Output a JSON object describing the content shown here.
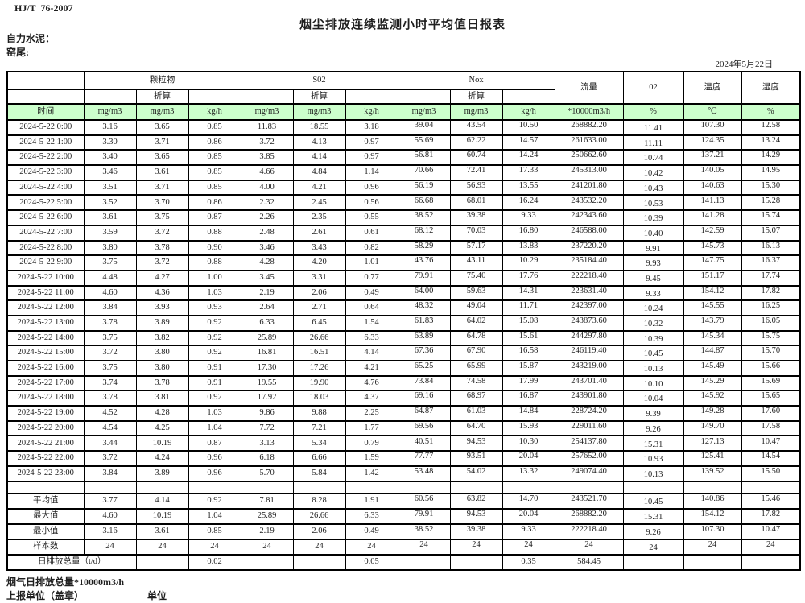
{
  "page": {
    "standard_code": "HJ/T  76-2007",
    "title": "烟尘排放连续监测小时平均值日报表",
    "company": "自力水泥：",
    "kiln": "窑尾:",
    "date": "2024年5月22日"
  },
  "colors": {
    "units_row_green": "#ccffcc",
    "border": "#000000"
  },
  "table": {
    "time_label": "时间",
    "groups": [
      {
        "label": "颗粒物",
        "sub": "折算",
        "units": [
          "mg/m3",
          "mg/m3",
          "kg/h"
        ]
      },
      {
        "label": "S02",
        "sub": "折算",
        "units": [
          "mg/m3",
          "mg/m3",
          "kg/h"
        ]
      },
      {
        "label": "Nox",
        "sub": "折算",
        "units": [
          "mg/m3",
          "mg/m3",
          "kg/h"
        ]
      }
    ],
    "singles": [
      {
        "label": "流量",
        "unit": "*10000m3/h"
      },
      {
        "label": "02",
        "unit": "%"
      },
      {
        "label": "温度",
        "unit": "℃"
      },
      {
        "label": "湿度",
        "unit": "%"
      }
    ],
    "rows": [
      {
        "time": "2024-5-22 0:00",
        "values": [
          "3.16",
          "3.65",
          "0.85",
          "11.83",
          "18.55",
          "3.18",
          "39.04",
          "43.54",
          "10.50",
          "268882.20",
          "11.41",
          "107.30",
          "12.58"
        ]
      },
      {
        "time": "2024-5-22 1:00",
        "values": [
          "3.30",
          "3.71",
          "0.86",
          "3.72",
          "4.13",
          "0.97",
          "55.69",
          "62.22",
          "14.57",
          "261633.00",
          "11.11",
          "124.35",
          "13.24"
        ]
      },
      {
        "time": "2024-5-22 2:00",
        "values": [
          "3.40",
          "3.65",
          "0.85",
          "3.85",
          "4.14",
          "0.97",
          "56.81",
          "60.74",
          "14.24",
          "250662.60",
          "10.74",
          "137.21",
          "14.29"
        ]
      },
      {
        "time": "2024-5-22 3:00",
        "values": [
          "3.46",
          "3.61",
          "0.85",
          "4.66",
          "4.84",
          "1.14",
          "70.66",
          "72.41",
          "17.33",
          "245313.00",
          "10.42",
          "140.05",
          "14.95"
        ]
      },
      {
        "time": "2024-5-22 4:00",
        "values": [
          "3.51",
          "3.71",
          "0.85",
          "4.00",
          "4.21",
          "0.96",
          "56.19",
          "56.93",
          "13.55",
          "241201.80",
          "10.43",
          "140.63",
          "15.30"
        ]
      },
      {
        "time": "2024-5-22 5:00",
        "values": [
          "3.52",
          "3.70",
          "0.86",
          "2.32",
          "2.45",
          "0.56",
          "66.68",
          "68.01",
          "16.24",
          "243532.20",
          "10.53",
          "141.13",
          "15.28"
        ]
      },
      {
        "time": "2024-5-22 6:00",
        "values": [
          "3.61",
          "3.75",
          "0.87",
          "2.26",
          "2.35",
          "0.55",
          "38.52",
          "39.38",
          "9.33",
          "242343.60",
          "10.39",
          "141.28",
          "15.74"
        ]
      },
      {
        "time": "2024-5-22 7:00",
        "values": [
          "3.59",
          "3.72",
          "0.88",
          "2.48",
          "2.61",
          "0.61",
          "68.12",
          "70.03",
          "16.80",
          "246588.00",
          "10.40",
          "142.59",
          "15.07"
        ]
      },
      {
        "time": "2024-5-22 8:00",
        "values": [
          "3.80",
          "3.78",
          "0.90",
          "3.46",
          "3.43",
          "0.82",
          "58.29",
          "57.17",
          "13.83",
          "237220.20",
          "9.91",
          "145.73",
          "16.13"
        ]
      },
      {
        "time": "2024-5-22 9:00",
        "values": [
          "3.75",
          "3.72",
          "0.88",
          "4.28",
          "4.20",
          "1.01",
          "43.76",
          "43.11",
          "10.29",
          "235184.40",
          "9.93",
          "147.75",
          "16.37"
        ]
      },
      {
        "time": "2024-5-22 10:00",
        "values": [
          "4.48",
          "4.27",
          "1.00",
          "3.45",
          "3.31",
          "0.77",
          "79.91",
          "75.40",
          "17.76",
          "222218.40",
          "9.45",
          "151.17",
          "17.74"
        ]
      },
      {
        "time": "2024-5-22 11:00",
        "values": [
          "4.60",
          "4.36",
          "1.03",
          "2.19",
          "2.06",
          "0.49",
          "64.00",
          "59.63",
          "14.31",
          "223631.40",
          "9.33",
          "154.12",
          "17.82"
        ]
      },
      {
        "time": "2024-5-22 12:00",
        "values": [
          "3.84",
          "3.93",
          "0.93",
          "2.64",
          "2.71",
          "0.64",
          "48.32",
          "49.04",
          "11.71",
          "242397.00",
          "10.24",
          "145.55",
          "16.25"
        ]
      },
      {
        "time": "2024-5-22 13:00",
        "values": [
          "3.78",
          "3.89",
          "0.92",
          "6.33",
          "6.45",
          "1.54",
          "61.83",
          "64.02",
          "15.08",
          "243873.60",
          "10.32",
          "143.79",
          "16.05"
        ]
      },
      {
        "time": "2024-5-22 14:00",
        "values": [
          "3.75",
          "3.82",
          "0.92",
          "25.89",
          "26.66",
          "6.33",
          "63.89",
          "64.78",
          "15.61",
          "244297.80",
          "10.39",
          "145.34",
          "15.75"
        ]
      },
      {
        "time": "2024-5-22 15:00",
        "values": [
          "3.72",
          "3.80",
          "0.92",
          "16.81",
          "16.51",
          "4.14",
          "67.36",
          "67.90",
          "16.58",
          "246119.40",
          "10.45",
          "144.87",
          "15.70"
        ]
      },
      {
        "time": "2024-5-22 16:00",
        "values": [
          "3.75",
          "3.80",
          "0.91",
          "17.30",
          "17.26",
          "4.21",
          "65.25",
          "65.99",
          "15.87",
          "243219.00",
          "10.13",
          "145.49",
          "15.66"
        ]
      },
      {
        "time": "2024-5-22 17:00",
        "values": [
          "3.74",
          "3.78",
          "0.91",
          "19.55",
          "19.90",
          "4.76",
          "73.84",
          "74.58",
          "17.99",
          "243701.40",
          "10.10",
          "145.29",
          "15.69"
        ]
      },
      {
        "time": "2024-5-22 18:00",
        "values": [
          "3.78",
          "3.81",
          "0.92",
          "17.92",
          "18.03",
          "4.37",
          "69.16",
          "68.97",
          "16.87",
          "243901.80",
          "10.04",
          "145.92",
          "15.65"
        ]
      },
      {
        "time": "2024-5-22 19:00",
        "values": [
          "4.52",
          "4.28",
          "1.03",
          "9.86",
          "9.88",
          "2.25",
          "64.87",
          "61.03",
          "14.84",
          "228724.20",
          "9.39",
          "149.28",
          "17.60"
        ]
      },
      {
        "time": "2024-5-22 20:00",
        "values": [
          "4.54",
          "4.25",
          "1.04",
          "7.72",
          "7.21",
          "1.77",
          "69.56",
          "64.70",
          "15.93",
          "229011.60",
          "9.26",
          "149.70",
          "17.58"
        ]
      },
      {
        "time": "2024-5-22 21:00",
        "values": [
          "3.44",
          "10.19",
          "0.87",
          "3.13",
          "5.34",
          "0.79",
          "40.51",
          "94.53",
          "10.30",
          "254137.80",
          "15.31",
          "127.13",
          "10.47"
        ]
      },
      {
        "time": "2024-5-22 22:00",
        "values": [
          "3.72",
          "4.24",
          "0.96",
          "6.18",
          "6.66",
          "1.59",
          "77.77",
          "93.51",
          "20.04",
          "257652.00",
          "10.93",
          "125.41",
          "14.54"
        ]
      },
      {
        "time": "2024-5-22 23:00",
        "values": [
          "3.84",
          "3.89",
          "0.96",
          "5.70",
          "5.84",
          "1.42",
          "53.48",
          "54.02",
          "13.32",
          "249074.40",
          "10.13",
          "139.52",
          "15.50"
        ]
      }
    ],
    "summary": [
      {
        "label": "平均值",
        "values": [
          "3.77",
          "4.14",
          "0.92",
          "7.81",
          "8.28",
          "1.91",
          "60.56",
          "63.82",
          "14.70",
          "243521.70",
          "10.45",
          "140.86",
          "15.46"
        ]
      },
      {
        "label": "最大值",
        "values": [
          "4.60",
          "10.19",
          "1.04",
          "25.89",
          "26.66",
          "6.33",
          "79.91",
          "94.53",
          "20.04",
          "268882.20",
          "15.31",
          "154.12",
          "17.82"
        ]
      },
      {
        "label": "最小值",
        "values": [
          "3.16",
          "3.61",
          "0.85",
          "2.19",
          "2.06",
          "0.49",
          "38.52",
          "39.38",
          "9.33",
          "222218.40",
          "9.26",
          "107.30",
          "10.47"
        ]
      },
      {
        "label": "样本数",
        "values": [
          "24",
          "24",
          "24",
          "24",
          "24",
          "24",
          "24",
          "24",
          "24",
          "24",
          "24",
          "24",
          "24"
        ]
      }
    ],
    "total_row": {
      "label": "日排放总量（t/d）",
      "values": [
        "",
        "0.02",
        "",
        "",
        "0.05",
        "",
        "",
        "0.35",
        "584.45",
        "",
        "",
        ""
      ]
    }
  },
  "footer": {
    "line1": "烟气日排放总量*10000m3/h",
    "line2_left": "上报单位（盖章）",
    "line2_right": "单位"
  }
}
